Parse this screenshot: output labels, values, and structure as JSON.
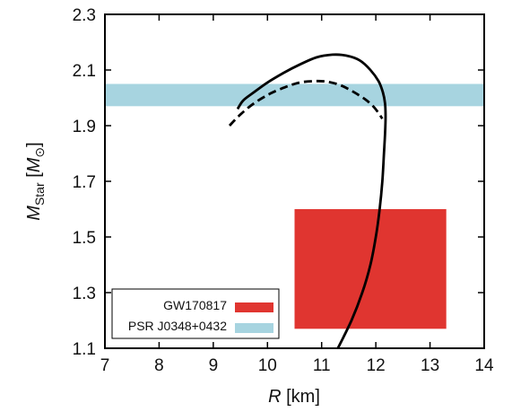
{
  "chart_data": {
    "type": "line",
    "xlabel": {
      "var": "R",
      "unit": " [km]"
    },
    "ylabel": {
      "var": "M",
      "sub": "Star",
      "unit_open": " [",
      "unit_var": "M",
      "unit_sub": "⊙",
      "unit_close": "]"
    },
    "xlim": [
      7,
      14
    ],
    "ylim": [
      1.1,
      2.3
    ],
    "xticks": [
      "7",
      "8",
      "9",
      "10",
      "11",
      "12",
      "13",
      "14"
    ],
    "yticks": [
      "1.1",
      "1.3",
      "1.5",
      "1.7",
      "1.9",
      "2.1",
      "2.3"
    ],
    "grid": false,
    "legend_position": "bottom-left",
    "bands": [
      {
        "name": "GW170817",
        "color": "#e03530",
        "x": [
          10.5,
          13.3
        ],
        "y": [
          1.17,
          1.6
        ]
      },
      {
        "name": "PSR J0348+0432",
        "color": "#a7d4e0",
        "x": [
          7,
          14
        ],
        "y": [
          1.97,
          2.05
        ]
      }
    ],
    "series": [
      {
        "style": "solid",
        "color": "#000000",
        "x": [
          11.3,
          11.55,
          11.75,
          11.9,
          12.0,
          12.07,
          12.12,
          12.15,
          12.17,
          12.18,
          12.17,
          12.13,
          12.05,
          11.9,
          11.7,
          11.45,
          11.2,
          10.9,
          10.6,
          10.3,
          10.0,
          9.75,
          9.55,
          9.45
        ],
        "y": [
          1.1,
          1.2,
          1.3,
          1.4,
          1.5,
          1.6,
          1.7,
          1.8,
          1.87,
          1.93,
          1.98,
          2.02,
          2.06,
          2.1,
          2.135,
          2.152,
          2.155,
          2.145,
          2.12,
          2.09,
          2.055,
          2.02,
          1.99,
          1.96
        ]
      },
      {
        "style": "dashed",
        "color": "#000000",
        "x": [
          9.3,
          9.5,
          9.75,
          10.05,
          10.35,
          10.6,
          10.85,
          11.1,
          11.35,
          11.6,
          11.8,
          11.95,
          12.05,
          12.12
        ],
        "y": [
          1.9,
          1.94,
          1.98,
          2.015,
          2.04,
          2.055,
          2.06,
          2.058,
          2.045,
          2.02,
          1.995,
          1.97,
          1.945,
          1.925
        ]
      }
    ]
  }
}
